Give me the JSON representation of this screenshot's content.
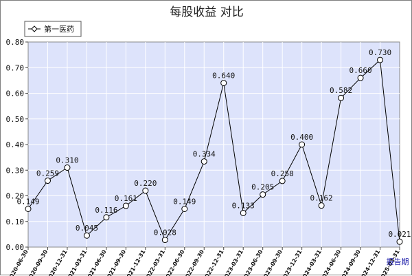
{
  "chart_data": {
    "type": "line",
    "title": "每股收益  对比",
    "corner_label": "报告期",
    "ylim": [
      0,
      0.8
    ],
    "yticks": [
      "0.00",
      "0.10",
      "0.20",
      "0.30",
      "0.40",
      "0.50",
      "0.60",
      "0.70",
      "0.80"
    ],
    "grid": true,
    "legend_position": "top-left",
    "categories": [
      "2020-06-30",
      "2020-09-30",
      "2020-12-31",
      "2021-03-31",
      "2021-06-30",
      "2021-09-30",
      "2021-12-31",
      "2022-03-31",
      "2022-06-30",
      "2022-09-30",
      "2022-12-31",
      "2023-03-31",
      "2023-06-30",
      "2023-09-30",
      "2023-12-31",
      "2024-03-31",
      "2024-06-30",
      "2024-09-30",
      "2024-12-31",
      "2025-03-31"
    ],
    "series": [
      {
        "name": "第一医药",
        "values": [
          0.149,
          0.259,
          0.31,
          0.045,
          0.116,
          0.161,
          0.22,
          0.028,
          0.149,
          0.334,
          0.64,
          0.133,
          0.205,
          0.258,
          0.4,
          0.162,
          0.582,
          0.66,
          0.73,
          0.021
        ],
        "labels": [
          "0.149",
          "0.259",
          "0.310",
          "0.045",
          "0.116",
          "0.161",
          "0.220",
          "0.028",
          "0.149",
          "0.334",
          "0.640",
          "0.133",
          "0.205",
          "0.258",
          "0.400",
          "0.162",
          "0.582",
          "0.660",
          "0.730",
          "0.021"
        ]
      }
    ],
    "colors": {
      "plot_bg": "#dde3fb",
      "grid": "#ffffff",
      "line": "#000000",
      "marker_fill": "#ffffff"
    }
  }
}
